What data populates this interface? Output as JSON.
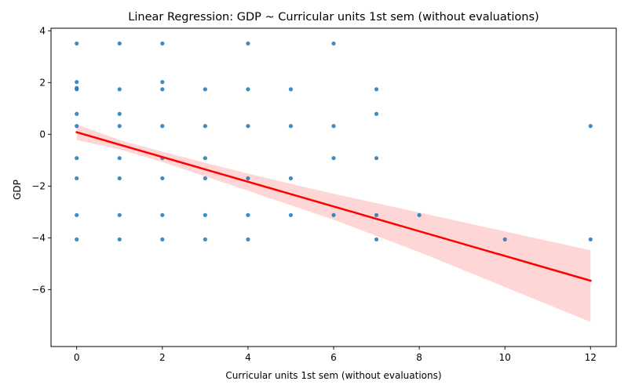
{
  "chart_data": {
    "type": "scatter",
    "title": "Linear Regression: GDP ~ Curricular units 1st sem (without evaluations)",
    "xlabel": "Curricular units 1st sem (without evaluations)",
    "ylabel": "GDP",
    "xlim": [
      -0.6,
      12.6
    ],
    "ylim": [
      -8.2,
      4.1
    ],
    "xticks": [
      0,
      2,
      4,
      6,
      8,
      10,
      12
    ],
    "yticks": [
      -6,
      -4,
      -2,
      0,
      2,
      4
    ],
    "xtick_labels": [
      "0",
      "2",
      "4",
      "6",
      "8",
      "10",
      "12"
    ],
    "ytick_labels": [
      "−6",
      "−4",
      "−2",
      "0",
      "2",
      "4"
    ],
    "grid": false,
    "colors": {
      "points": "#1f77b4",
      "regression_line": "#ff0000",
      "confidence_band": "#ffcccc"
    },
    "points": [
      [
        0,
        3.51
      ],
      [
        0,
        2.02
      ],
      [
        0,
        1.79
      ],
      [
        0,
        1.74
      ],
      [
        0,
        0.79
      ],
      [
        0,
        0.32
      ],
      [
        0,
        -0.92
      ],
      [
        0,
        -1.7
      ],
      [
        0,
        -3.12
      ],
      [
        0,
        -4.06
      ],
      [
        1,
        3.51
      ],
      [
        1,
        1.74
      ],
      [
        1,
        0.79
      ],
      [
        1,
        0.32
      ],
      [
        1,
        -0.92
      ],
      [
        1,
        -1.7
      ],
      [
        1,
        -3.12
      ],
      [
        1,
        -4.06
      ],
      [
        2,
        3.51
      ],
      [
        2,
        2.02
      ],
      [
        2,
        1.74
      ],
      [
        2,
        0.32
      ],
      [
        2,
        -0.92
      ],
      [
        2,
        -1.7
      ],
      [
        2,
        -3.12
      ],
      [
        2,
        -4.06
      ],
      [
        3,
        1.74
      ],
      [
        3,
        0.32
      ],
      [
        3,
        -0.92
      ],
      [
        3,
        -1.7
      ],
      [
        3,
        -3.12
      ],
      [
        3,
        -4.06
      ],
      [
        4,
        3.51
      ],
      [
        4,
        1.74
      ],
      [
        4,
        0.32
      ],
      [
        4,
        -1.7
      ],
      [
        4,
        -3.12
      ],
      [
        4,
        -4.06
      ],
      [
        5,
        1.74
      ],
      [
        5,
        0.32
      ],
      [
        5,
        -1.7
      ],
      [
        5,
        -3.12
      ],
      [
        6,
        3.51
      ],
      [
        6,
        0.32
      ],
      [
        6,
        -0.92
      ],
      [
        6,
        -3.12
      ],
      [
        7,
        1.74
      ],
      [
        7,
        0.79
      ],
      [
        7,
        -0.92
      ],
      [
        7,
        -3.12
      ],
      [
        7,
        -4.06
      ],
      [
        8,
        -3.12
      ],
      [
        10,
        -4.06
      ],
      [
        12,
        0.32
      ],
      [
        12,
        -4.06
      ]
    ],
    "regression": {
      "intercept": 0.08,
      "slope": -0.478
    },
    "confidence_band": [
      {
        "x": 0,
        "lower": -0.22,
        "upper": 0.38
      },
      {
        "x": 1,
        "lower": -0.58,
        "upper": -0.22
      },
      {
        "x": 2,
        "lower": -1.07,
        "upper": -0.67
      },
      {
        "x": 4,
        "lower": -2.18,
        "upper": -1.52
      },
      {
        "x": 6,
        "lower": -3.3,
        "upper": -2.3
      },
      {
        "x": 8,
        "lower": -4.55,
        "upper": -3.02
      },
      {
        "x": 10,
        "lower": -5.9,
        "upper": -3.75
      },
      {
        "x": 12,
        "lower": -7.25,
        "upper": -4.48
      }
    ]
  }
}
